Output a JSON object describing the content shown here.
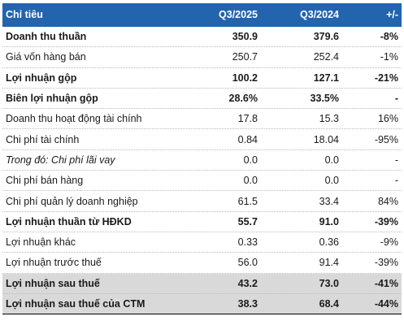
{
  "header": {
    "name": "Chỉ tiêu",
    "v1": "Q3/2025",
    "v2": "Q3/2024",
    "chg": "+/-"
  },
  "rows": [
    {
      "name": "Doanh thu thuần",
      "v1": "350.9",
      "v2": "379.6",
      "chg": "-8%"
    },
    {
      "name": "Giá vốn hàng bán",
      "v1": "250.7",
      "v2": "252.4",
      "chg": "-1%"
    },
    {
      "name": "Lợi nhuận gộp",
      "v1": "100.2",
      "v2": "127.1",
      "chg": "-21%"
    },
    {
      "name": "Biên lợi nhuận gộp",
      "v1": "28.6%",
      "v2": "33.5%",
      "chg": "-"
    },
    {
      "name": "Doanh thu hoạt động tài chính",
      "v1": "17.8",
      "v2": "15.3",
      "chg": "16%"
    },
    {
      "name": "Chi phí tài chính",
      "v1": "0.84",
      "v2": "18.04",
      "chg": "-95%"
    },
    {
      "name": "Trong đó: Chi phí lãi vay",
      "v1": "0.0",
      "v2": "0.0",
      "chg": "-"
    },
    {
      "name": "Chi phí bán hàng",
      "v1": "0.0",
      "v2": "0.0",
      "chg": "-"
    },
    {
      "name": "Chi phí quản lý doanh nghiệp",
      "v1": "61.5",
      "v2": "33.4",
      "chg": "84%"
    },
    {
      "name": "Lợi nhuận thuần từ HĐKD",
      "v1": "55.7",
      "v2": "91.0",
      "chg": "-39%"
    },
    {
      "name": "Lợi nhuận khác",
      "v1": "0.33",
      "v2": "0.36",
      "chg": "-9%"
    },
    {
      "name": "Lợi nhuận trước thuế",
      "v1": "56.0",
      "v2": "91.4",
      "chg": "-39%"
    },
    {
      "name": "Lợi nhuận sau thuế",
      "v1": "43.2",
      "v2": "73.0",
      "chg": "-41%"
    },
    {
      "name": "Lợi nhuận sau thuế của CTM",
      "v1": "38.3",
      "v2": "68.4",
      "chg": "-44%"
    }
  ],
  "colors": {
    "header_bg": "#2264ae",
    "header_text": "#ffffff",
    "shaded_row_bg": "#d9d9d9"
  }
}
